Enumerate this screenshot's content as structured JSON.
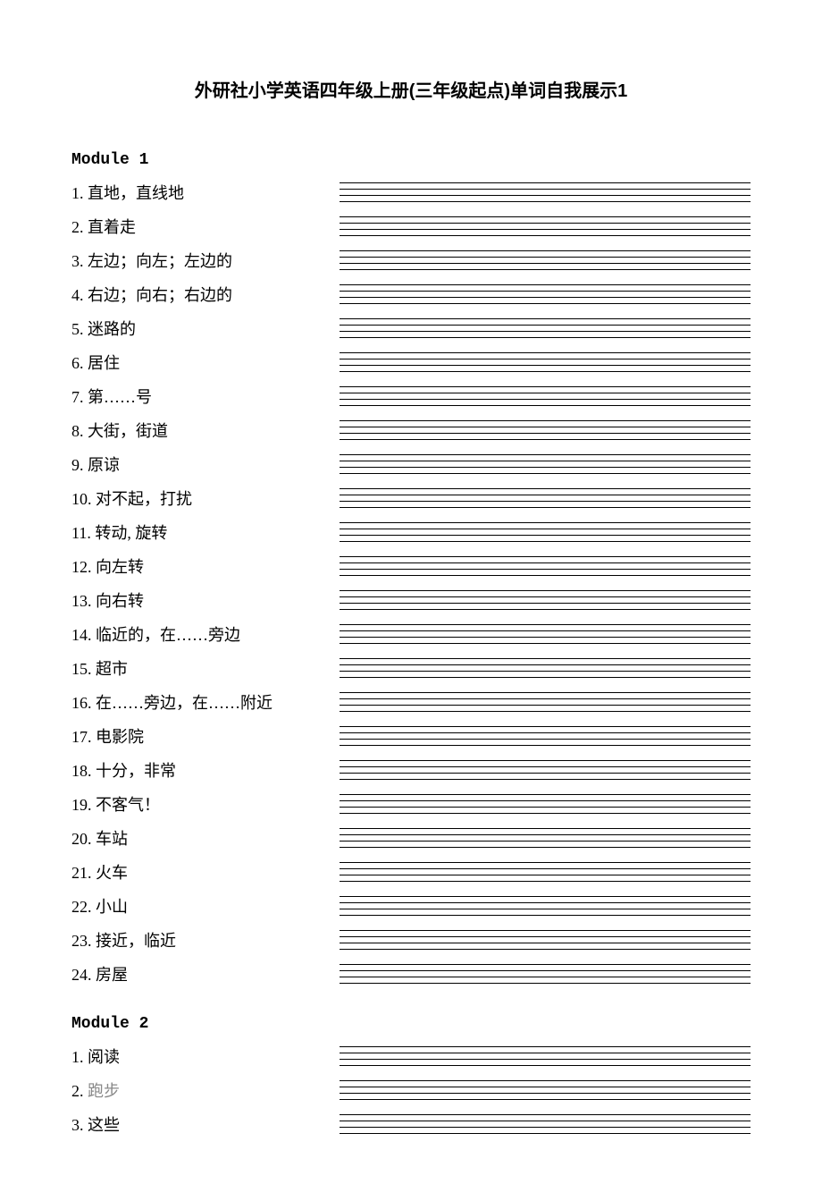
{
  "title": "外研社小学英语四年级上册(三年级起点)单词自我展示1",
  "modules": [
    {
      "header": "Module 1",
      "items": [
        {
          "num": "1",
          "text": "直地，直线地"
        },
        {
          "num": "2",
          "text": "直着走"
        },
        {
          "num": "3",
          "text": "左边；向左；左边的"
        },
        {
          "num": "4",
          "text": "右边；向右；右边的"
        },
        {
          "num": "5",
          "text": "迷路的"
        },
        {
          "num": "6",
          "text": "居住"
        },
        {
          "num": "7",
          "text": "第……号"
        },
        {
          "num": "8",
          "text": "大街，街道"
        },
        {
          "num": "9",
          "text": "原谅"
        },
        {
          "num": "10",
          "text": "对不起，打扰"
        },
        {
          "num": "11",
          "text": "转动, 旋转"
        },
        {
          "num": "12",
          "text": "向左转"
        },
        {
          "num": "13",
          "text": "向右转"
        },
        {
          "num": "14",
          "text": "临近的，在……旁边"
        },
        {
          "num": "15",
          "text": "超市"
        },
        {
          "num": "16",
          "text": "在……旁边，在……附近"
        },
        {
          "num": "17",
          "text": "电影院"
        },
        {
          "num": "18",
          "text": "十分，非常"
        },
        {
          "num": "19",
          "text": "不客气！"
        },
        {
          "num": "20",
          "text": "车站"
        },
        {
          "num": "21",
          "text": "火车"
        },
        {
          "num": "22",
          "text": "小山"
        },
        {
          "num": "23",
          "text": "接近，临近"
        },
        {
          "num": "24",
          "text": "房屋"
        }
      ]
    },
    {
      "header": "Module 2",
      "items": [
        {
          "num": "1",
          "text": "阅读"
        },
        {
          "num": "2",
          "text": "跑步",
          "faded": true
        },
        {
          "num": "3",
          "text": "这些"
        }
      ]
    }
  ],
  "colors": {
    "background": "#ffffff",
    "text": "#000000",
    "faded_text": "#888888",
    "line": "#000000"
  },
  "typography": {
    "title_fontsize": 20,
    "body_fontsize": 18,
    "title_family": "SimHei",
    "body_family": "SimSun",
    "header_family": "Courier New"
  }
}
